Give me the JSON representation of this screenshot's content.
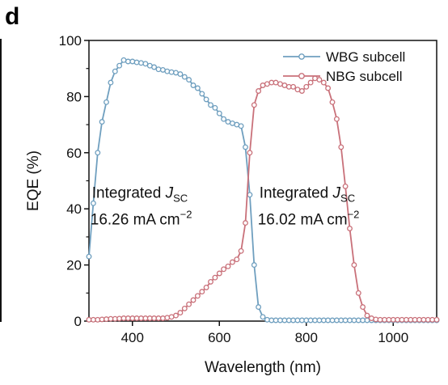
{
  "panel_label": "d",
  "chart_data": {
    "type": "line",
    "xlabel": "Wavelength (nm)",
    "ylabel": "EQE (%)",
    "xlim": [
      300,
      1100
    ],
    "ylim": [
      0,
      100
    ],
    "xticks": [
      400,
      600,
      800,
      1000
    ],
    "yticks": [
      0,
      20,
      40,
      60,
      80,
      100
    ],
    "legend_position": "top-right",
    "series": [
      {
        "name": "WBG subcell",
        "color": "#6f9fbf",
        "x": [
          300,
          310,
          320,
          330,
          340,
          350,
          360,
          370,
          380,
          390,
          400,
          410,
          420,
          430,
          440,
          450,
          460,
          470,
          480,
          490,
          500,
          510,
          520,
          530,
          540,
          550,
          560,
          570,
          580,
          590,
          600,
          610,
          620,
          630,
          640,
          650,
          660,
          670,
          680,
          690,
          700,
          710,
          720,
          730,
          740,
          750,
          760,
          770,
          780,
          790,
          800,
          810,
          820,
          830,
          840,
          850,
          860,
          870,
          880,
          890,
          900,
          910,
          920,
          930,
          940,
          950,
          960,
          970,
          980,
          990,
          1000,
          1010,
          1020,
          1030,
          1040,
          1050,
          1060,
          1070,
          1080,
          1090,
          1100
        ],
        "y": [
          23,
          42,
          60,
          71,
          78,
          85,
          89,
          91,
          93,
          92.5,
          92.5,
          92.2,
          92,
          91.7,
          91,
          90.5,
          89.7,
          89.5,
          89,
          88.7,
          88.5,
          88,
          87,
          86,
          84,
          83,
          81,
          79,
          77,
          76,
          74,
          72,
          71,
          70.5,
          70,
          69.5,
          62,
          45,
          20,
          5,
          1.5,
          0.5,
          0.3,
          0.3,
          0.3,
          0.3,
          0.3,
          0.3,
          0.3,
          0.3,
          0.3,
          0.3,
          0.3,
          0.3,
          0.3,
          0.3,
          0.3,
          0.3,
          0.3,
          0.3,
          0.3,
          0.3,
          0.3,
          0.3,
          0.3,
          0.3,
          0.3,
          0.3,
          0.3,
          0.3,
          0.3,
          0.3,
          0.3,
          0.3,
          0.3,
          0.3,
          0.3,
          0.3,
          0.3,
          0.3,
          0.3
        ]
      },
      {
        "name": "NBG subcell",
        "color": "#c9717a",
        "x": [
          300,
          310,
          320,
          330,
          340,
          350,
          360,
          370,
          380,
          390,
          400,
          410,
          420,
          430,
          440,
          450,
          460,
          470,
          480,
          490,
          500,
          510,
          520,
          530,
          540,
          550,
          560,
          570,
          580,
          590,
          600,
          610,
          620,
          630,
          640,
          650,
          660,
          670,
          680,
          690,
          700,
          710,
          720,
          730,
          740,
          750,
          760,
          770,
          780,
          790,
          800,
          810,
          820,
          830,
          840,
          850,
          860,
          870,
          880,
          890,
          900,
          910,
          920,
          930,
          940,
          950,
          960,
          970,
          980,
          990,
          1000,
          1010,
          1020,
          1030,
          1040,
          1050,
          1060,
          1070,
          1080,
          1090,
          1100
        ],
        "y": [
          0.5,
          0.5,
          0.5,
          0.6,
          0.7,
          0.8,
          0.8,
          0.9,
          1,
          1,
          1,
          1,
          1,
          1,
          1,
          1,
          1,
          1,
          1.2,
          1.5,
          2,
          3,
          4.5,
          6,
          7.5,
          9,
          10.5,
          12,
          14,
          15.5,
          17,
          18.5,
          19.5,
          21,
          22,
          25,
          35,
          60,
          77,
          82,
          84,
          84.5,
          85,
          85,
          84.5,
          84,
          83.5,
          83.5,
          82.5,
          82,
          83.5,
          85,
          86.5,
          86,
          85,
          83,
          78,
          72,
          62,
          48,
          33,
          20,
          10,
          5,
          2,
          1,
          0.6,
          0.5,
          0.5,
          0.5,
          0.5,
          0.5,
          0.5,
          0.5,
          0.5,
          0.5,
          0.5,
          0.5,
          0.5,
          0.5,
          0.5
        ]
      }
    ],
    "annotations": [
      {
        "line1": "Integrated ",
        "symbol": "J",
        "sub": "SC",
        "line2": "16.26 mA cm",
        "sup": "−2",
        "x_data": 400,
        "y_data": 44
      },
      {
        "line1": "Integrated ",
        "symbol": "J",
        "sub": "SC",
        "line2": "16.02 mA cm",
        "sup": "−2",
        "x_data": 785,
        "y_data": 44
      }
    ]
  }
}
